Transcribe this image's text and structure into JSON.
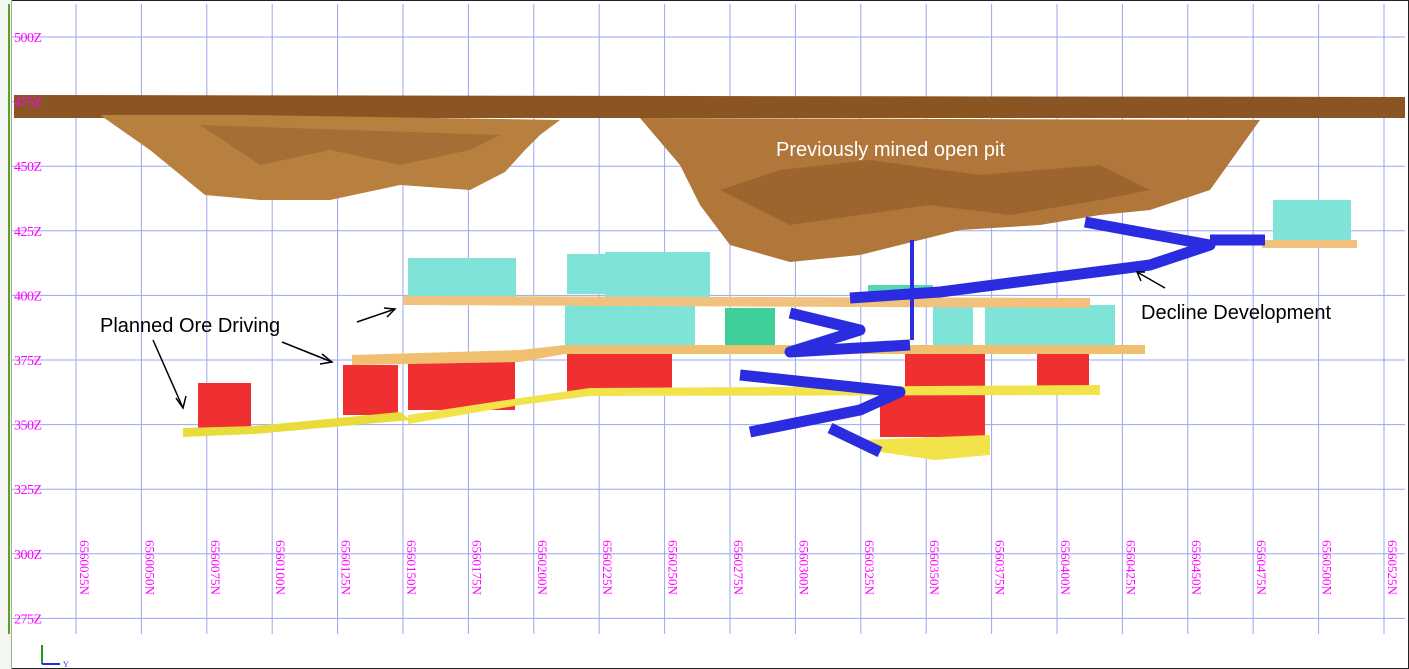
{
  "annotations": {
    "open_pit": "Previously mined open pit",
    "decline": "Decline Development",
    "ore_driving": "Planned Ore Driving"
  },
  "elevation_labels": [
    "500Z",
    "475Z",
    "450Z",
    "425Z",
    "400Z",
    "375Z",
    "350Z",
    "325Z",
    "300Z",
    "275Z"
  ],
  "northing_labels": [
    "6560025N",
    "6560050N",
    "6560075N",
    "6560100N",
    "6560125N",
    "6560150N",
    "6560175N",
    "6560200N",
    "6560225N",
    "6560250N",
    "6560275N",
    "6560300N",
    "6560325N",
    "6560350N",
    "6560375N",
    "6560400N",
    "6560425N",
    "6560450N",
    "6560475N",
    "6560500N",
    "6560525N"
  ],
  "axis_triad": {
    "y_label": "Y"
  },
  "colors": {
    "grid": "#9aa6f0",
    "pit": "#b0763a",
    "pit_surface": "#8a5522",
    "stope_red": "#f03030",
    "stope_cyan": "#7fe3d8",
    "drive_yellow": "#f2e34a",
    "drive_orange": "#f1c27d",
    "decline_blue": "#2b2be0",
    "label_magenta": "#ff00ff"
  }
}
